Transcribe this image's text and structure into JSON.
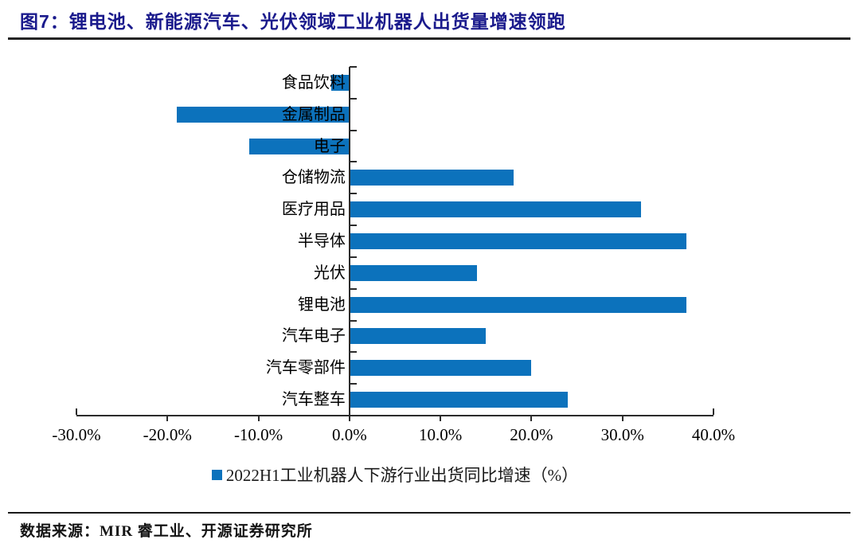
{
  "header": {
    "title": "图7：锂电池、新能源汽车、光伏领域工业机器人出货量增速领跑"
  },
  "footer": {
    "source": "数据来源：MIR 睿工业、开源证券研究所"
  },
  "colors": {
    "bar": "#0c72bc",
    "title": "#1a1a8c",
    "axis": "#2b2b2b"
  },
  "chart_data": {
    "type": "bar",
    "orientation": "horizontal",
    "title": "图7：锂电池、新能源汽车、光伏领域工业机器人出货量增速领跑",
    "categories": [
      "食品饮料",
      "金属制品",
      "电子",
      "仓储物流",
      "医疗用品",
      "半导体",
      "光伏",
      "锂电池",
      "汽车电子",
      "汽车零部件",
      "汽车整车"
    ],
    "values": [
      -2,
      -19,
      -11,
      18,
      32,
      37,
      14,
      37,
      15,
      20,
      24
    ],
    "unit": "%",
    "series_name": "2022H1工业机器人下游行业出货同比增速（%）",
    "xlim": [
      -30,
      40
    ],
    "x_ticks": [
      -30,
      -20,
      -10,
      0,
      10,
      20,
      30,
      40
    ],
    "x_tick_labels": [
      "-30.0%",
      "-20.0%",
      "-10.0%",
      "0.0%",
      "10.0%",
      "20.0%",
      "30.0%",
      "40.0%"
    ],
    "legend_position": "bottom",
    "grid": false
  }
}
